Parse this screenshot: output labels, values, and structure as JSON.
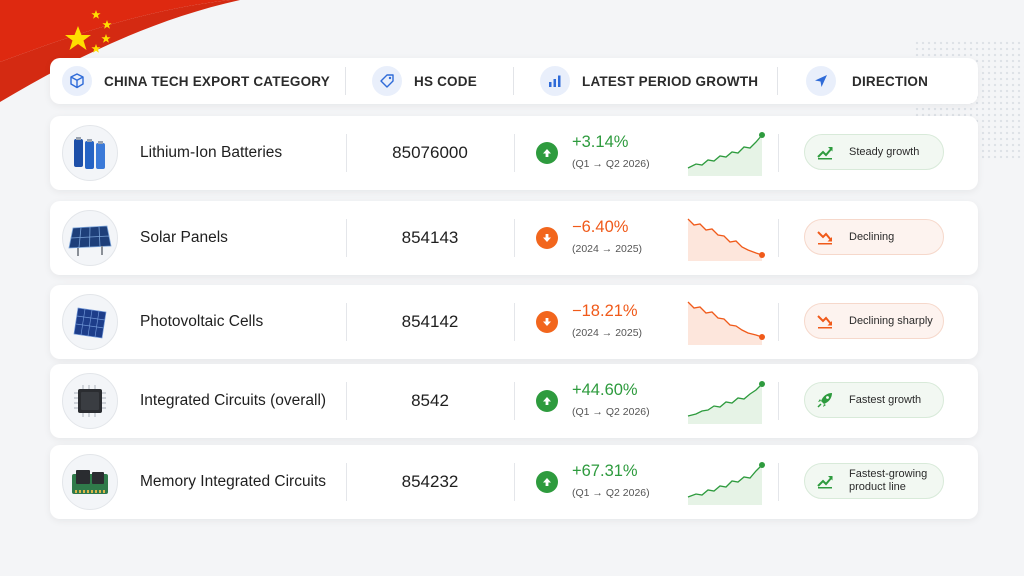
{
  "header": {
    "category_label": "CHINA TECH EXPORT CATEGORY",
    "hs_label": "HS CODE",
    "growth_label": "LATEST PERIOD GROWTH",
    "direction_label": "DIRECTION"
  },
  "colors": {
    "green": "#2e9b3e",
    "orange": "#f05a1a",
    "flag_red": "#de2910",
    "flag_yellow": "#ffde00"
  },
  "rows": [
    {
      "product": "Lithium-Ion Batteries",
      "product_icon": "battery-icon",
      "hs_code": "85076000",
      "trend": "up",
      "growth": "+3.14%",
      "period": "(Q1 → Q2 2026)",
      "direction": "Steady growth",
      "direction_icon": "trend-up-icon"
    },
    {
      "product": "Solar Panels",
      "product_icon": "solar-panel-icon",
      "hs_code": "854143",
      "trend": "down",
      "growth": "−6.40%",
      "period": "(2024 → 2025)",
      "direction": "Declining",
      "direction_icon": "trend-down-icon"
    },
    {
      "product": "Photovoltaic Cells",
      "product_icon": "pv-cell-icon",
      "hs_code": "854142",
      "trend": "down",
      "growth": "−18.21%",
      "period": "(2024 → 2025)",
      "direction": "Declining sharply",
      "direction_icon": "trend-down-icon"
    },
    {
      "product": "Integrated Circuits (overall)",
      "product_icon": "chip-icon",
      "hs_code": "8542",
      "trend": "up",
      "growth": "+44.60%",
      "period": "(Q1 → Q2 2026)",
      "direction": "Fastest growth",
      "direction_icon": "rocket-icon"
    },
    {
      "product": "Memory Integrated Circuits",
      "product_icon": "memory-chip-icon",
      "hs_code": "854232",
      "trend": "up",
      "growth": "+67.31%",
      "period": "(Q1 → Q2 2026)",
      "direction": "Fastest-growing product line",
      "direction_icon": "trend-up-icon"
    }
  ]
}
